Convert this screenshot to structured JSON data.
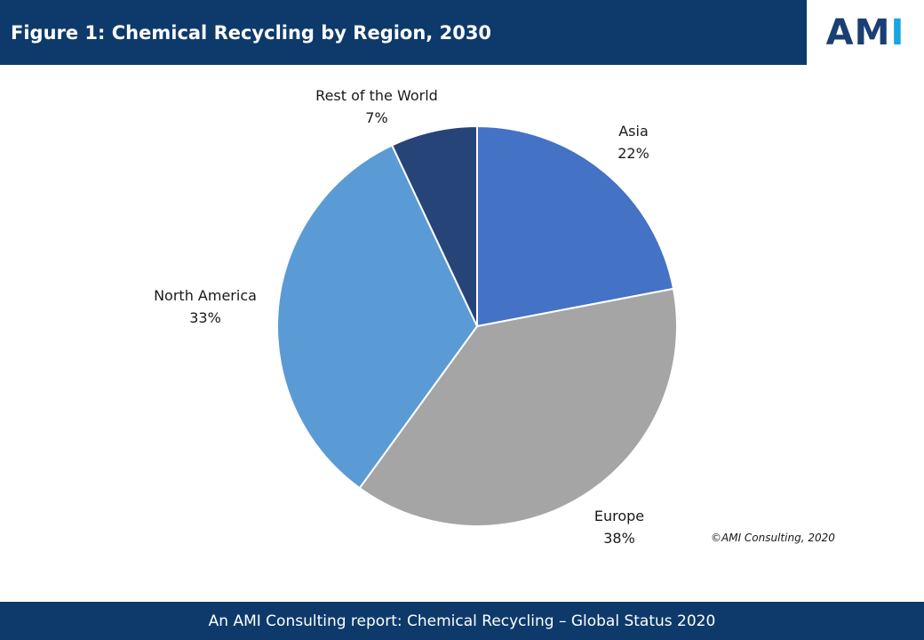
{
  "header": {
    "title": "Figure 1: Chemical Recycling by Region, 2030"
  },
  "logo": {
    "text_main": "AM",
    "text_accent": "I"
  },
  "chart_data": {
    "type": "pie",
    "title": "Figure 1: Chemical Recycling by Region, 2030",
    "slices": [
      {
        "label": "Asia",
        "value": 22,
        "display": "22%",
        "color": "#4472c4"
      },
      {
        "label": "Europe",
        "value": 38,
        "display": "38%",
        "color": "#a5a5a5"
      },
      {
        "label": "North America",
        "value": 33,
        "display": "33%",
        "color": "#5b9bd5"
      },
      {
        "label": "Rest of the World",
        "value": 7,
        "display": "7%",
        "color": "#264478"
      }
    ]
  },
  "copyright": "©AMI Consulting, 2020",
  "footer": {
    "text": "An AMI Consulting report: Chemical Recycling – Global Status 2020"
  }
}
